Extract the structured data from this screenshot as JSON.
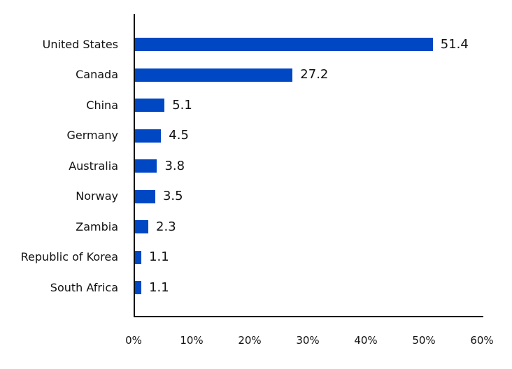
{
  "chart_data": {
    "type": "bar",
    "orientation": "horizontal",
    "title": "",
    "xlabel": "",
    "ylabel": "",
    "categories": [
      "United States",
      "Canada",
      "China",
      "Germany",
      "Australia",
      "Norway",
      "Zambia",
      "Republic of Korea",
      "South Africa"
    ],
    "values": [
      51.4,
      27.2,
      5.1,
      4.5,
      3.8,
      3.5,
      2.3,
      1.1,
      1.1
    ],
    "value_labels": [
      "51.4",
      "27.2",
      "5.1",
      "4.5",
      "3.8",
      "3.5",
      "2.3",
      "1.1",
      "1.1"
    ],
    "xlim": [
      0,
      60
    ],
    "x_ticks": [
      "0%",
      "10%",
      "20%",
      "30%",
      "40%",
      "50%",
      "60%"
    ],
    "grid": false,
    "legend": null,
    "bar_color": "#0047c4"
  }
}
